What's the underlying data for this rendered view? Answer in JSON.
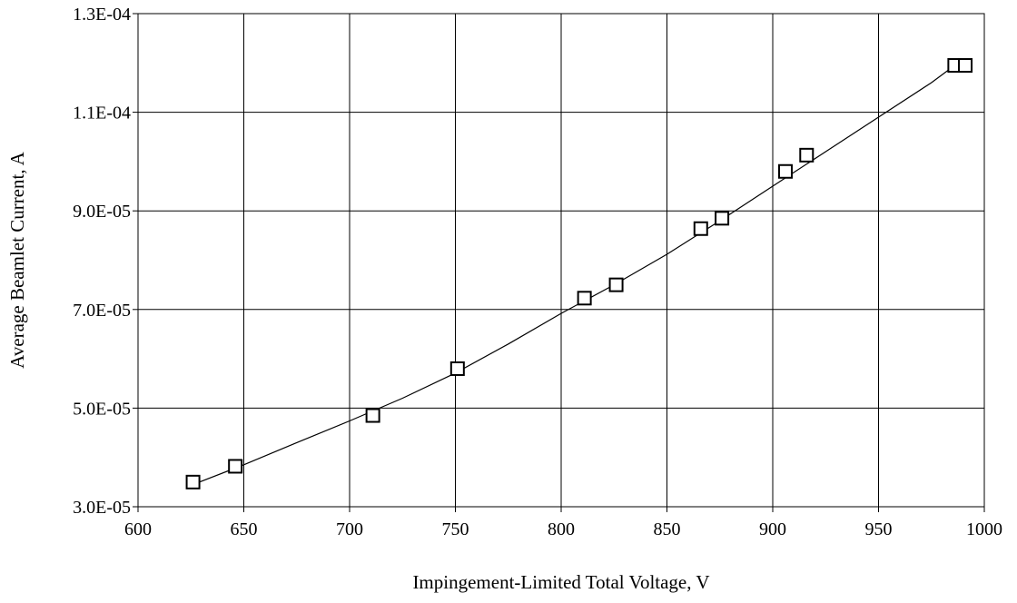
{
  "chart_data": {
    "type": "scatter",
    "title": "",
    "xlabel": "Impingement-Limited Total Voltage, V",
    "ylabel": "Average Beamlet Current, A",
    "xlim": [
      600,
      1000
    ],
    "ylim": [
      3e-05,
      0.00013
    ],
    "x_ticks": [
      600,
      650,
      700,
      750,
      800,
      850,
      900,
      950,
      1000
    ],
    "y_ticks": [
      3e-05,
      5e-05,
      7e-05,
      9e-05,
      0.00011,
      0.00013
    ],
    "x_tick_labels": [
      "600",
      "650",
      "700",
      "750",
      "800",
      "850",
      "900",
      "950",
      "1000"
    ],
    "y_tick_labels": [
      "3.0E-05",
      "5.0E-05",
      "7.0E-05",
      "9.0E-05",
      "1.1E-04",
      "1.3E-04"
    ],
    "grid": true,
    "legend": "none",
    "series": [
      {
        "marker": "open-square",
        "x": [
          626,
          646,
          711,
          751,
          811,
          826,
          866,
          876,
          906,
          916,
          986,
          991
        ],
        "y": [
          3.5e-05,
          3.82e-05,
          4.85e-05,
          5.8e-05,
          7.23e-05,
          7.5e-05,
          8.64e-05,
          8.85e-05,
          9.8e-05,
          0.0001013,
          0.0001195,
          0.0001195
        ]
      }
    ],
    "trend_line": {
      "x": [
        626,
        650,
        675,
        700,
        725,
        750,
        775,
        800,
        825,
        850,
        875,
        900,
        925,
        950,
        975,
        986
      ],
      "y": [
        3.45e-05,
        3.85e-05,
        4.3e-05,
        4.74e-05,
        5.2e-05,
        5.71e-05,
        6.3e-05,
        6.92e-05,
        7.5e-05,
        8.12e-05,
        8.8e-05,
        9.5e-05,
        0.000102,
        0.000109,
        0.000116,
        0.0001195
      ]
    },
    "colors": {
      "grid": "#000000",
      "marker": "#000000",
      "line": "#000000"
    }
  }
}
